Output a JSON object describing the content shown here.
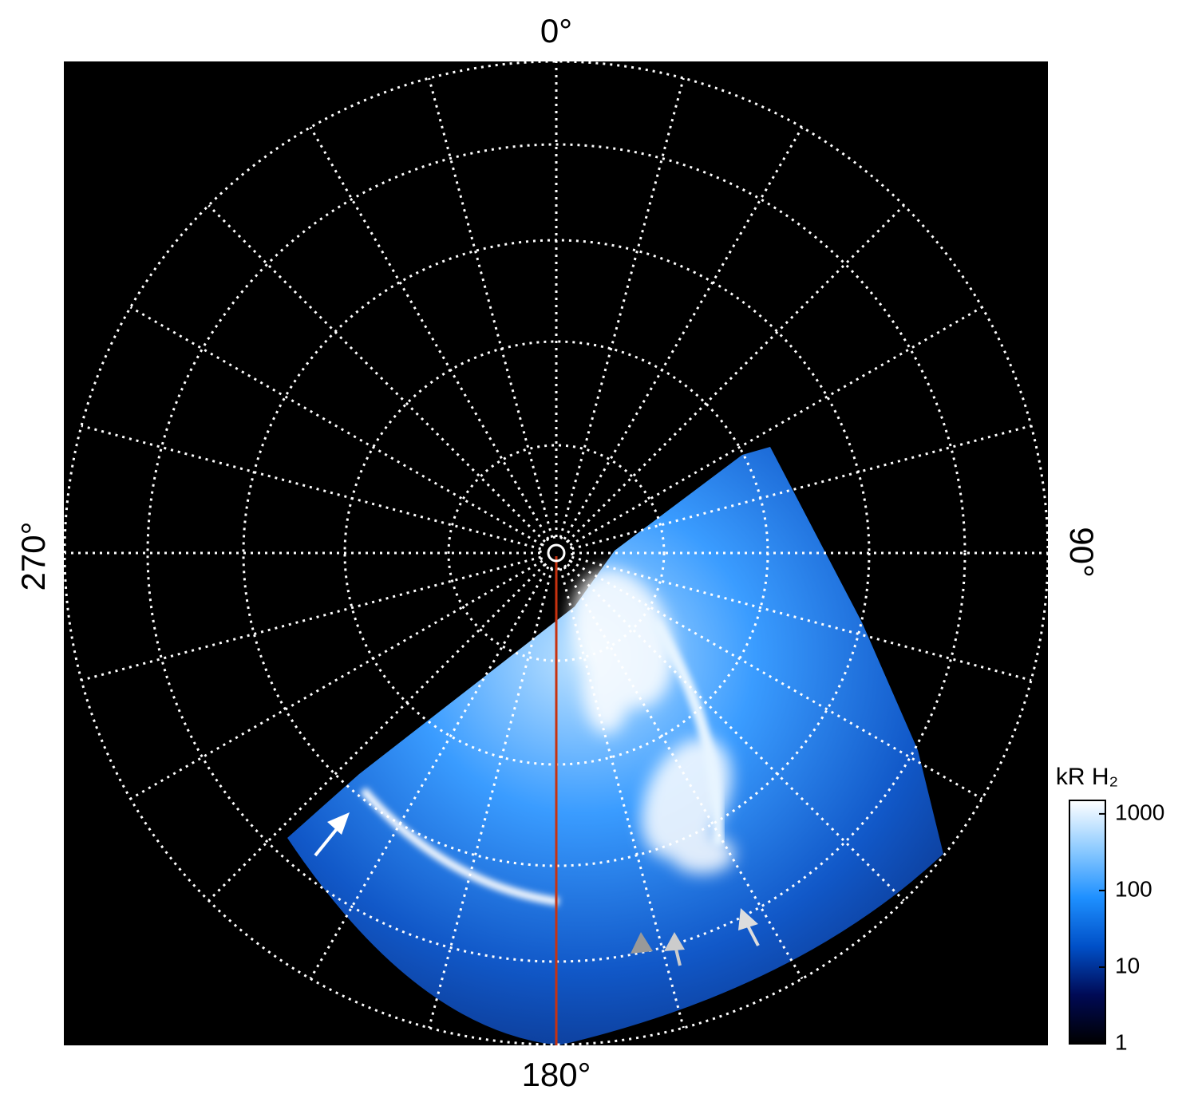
{
  "chart_data": {
    "type": "polar_image",
    "angle_labels": {
      "top": "0°",
      "right": "90°",
      "bottom": "180°",
      "left": "270°"
    },
    "colorbar": {
      "label": "kR H₂",
      "log": true,
      "lim": [
        1,
        1500
      ],
      "ticks": [
        1,
        10,
        100,
        1000
      ],
      "colors": [
        "#000000",
        "#000a55",
        "#0050c8",
        "#1e90ff",
        "#8ecbff",
        "#ffffff"
      ]
    }
  }
}
